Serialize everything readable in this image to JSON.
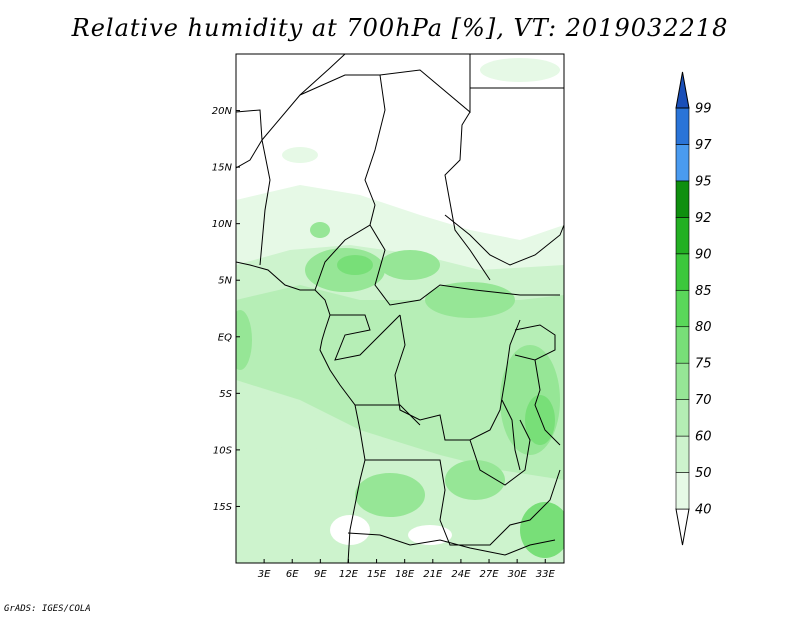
{
  "title": "Relative humidity at 700hPa [%], VT: 2019032218",
  "footer": "GrADS: IGES/COLA",
  "map": {
    "lon_range": [
      0,
      35
    ],
    "lat_range": [
      -20,
      25
    ],
    "lat_ticks": [
      {
        "value": 20,
        "label": "20N"
      },
      {
        "value": 15,
        "label": "15N"
      },
      {
        "value": 10,
        "label": "10N"
      },
      {
        "value": 5,
        "label": "5N"
      },
      {
        "value": 0,
        "label": "EQ"
      },
      {
        "value": -5,
        "label": "5S"
      },
      {
        "value": -10,
        "label": "10S"
      },
      {
        "value": -15,
        "label": "15S"
      }
    ],
    "lon_ticks": [
      {
        "value": 3,
        "label": "3E"
      },
      {
        "value": 6,
        "label": "6E"
      },
      {
        "value": 9,
        "label": "9E"
      },
      {
        "value": 12,
        "label": "12E"
      },
      {
        "value": 15,
        "label": "15E"
      },
      {
        "value": 18,
        "label": "18E"
      },
      {
        "value": 21,
        "label": "21E"
      },
      {
        "value": 24,
        "label": "24E"
      },
      {
        "value": 27,
        "label": "27E"
      },
      {
        "value": 30,
        "label": "30E"
      },
      {
        "value": 33,
        "label": "33E"
      }
    ]
  },
  "colorbar": {
    "levels": [
      "40",
      "50",
      "60",
      "70",
      "75",
      "80",
      "85",
      "90",
      "92",
      "95",
      "97",
      "99"
    ],
    "colors": [
      "#ffffff",
      "#e6f9e6",
      "#cdf3cd",
      "#b4edb4",
      "#96e696",
      "#78df78",
      "#5ad75a",
      "#3cc83c",
      "#23b023",
      "#0f8f0f",
      "#4a9bf0",
      "#2a74d8",
      "#1a4fb8"
    ]
  }
}
